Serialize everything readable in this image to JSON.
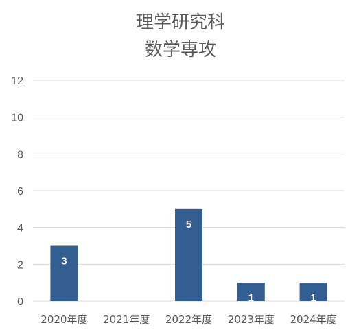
{
  "chart_data": {
    "type": "bar",
    "title": [
      "理学研究科",
      "数学専攻"
    ],
    "categories": [
      "2020年度",
      "2021年度",
      "2022年度",
      "2023年度",
      "2024年度"
    ],
    "values": [
      3,
      0,
      5,
      1,
      1
    ],
    "data_labels": [
      "3",
      "",
      "5",
      "1",
      "1"
    ],
    "ylim": [
      0,
      12
    ],
    "yticks": [
      0,
      2,
      4,
      6,
      8,
      10,
      12
    ],
    "grid": true,
    "bar_color": "#335E92",
    "grid_color": "#D9D9D9"
  }
}
